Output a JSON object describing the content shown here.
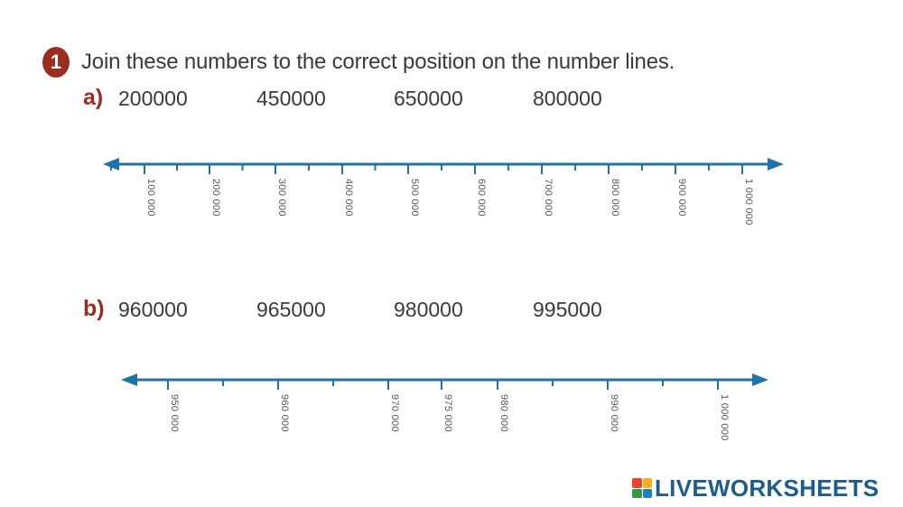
{
  "question": {
    "number": "1",
    "instruction": "Join these numbers to the correct position on the number lines."
  },
  "part_a": {
    "label": "a)",
    "numbers": [
      "200000",
      "450000",
      "650000",
      "800000"
    ],
    "tick_labels": [
      "100 000",
      "200 000",
      "300 000",
      "400 000",
      "500 000",
      "600 000",
      "700 000",
      "800 000",
      "900 000",
      "1 000 000"
    ],
    "range": [
      100000,
      1000000
    ]
  },
  "part_b": {
    "label": "b)",
    "numbers": [
      "960000",
      "965000",
      "980000",
      "995000"
    ],
    "tick_labels": [
      "950 000",
      "960 000",
      "970 000",
      "975 000",
      "980 000",
      "990 000",
      "1 000 000"
    ],
    "range": [
      950000,
      1000000
    ]
  },
  "colors": {
    "line": "#1f73a8",
    "accent": "#9b2d20",
    "brand": "#1d5d8c"
  },
  "brand": {
    "name": "LIVEWORKSHEETS"
  }
}
